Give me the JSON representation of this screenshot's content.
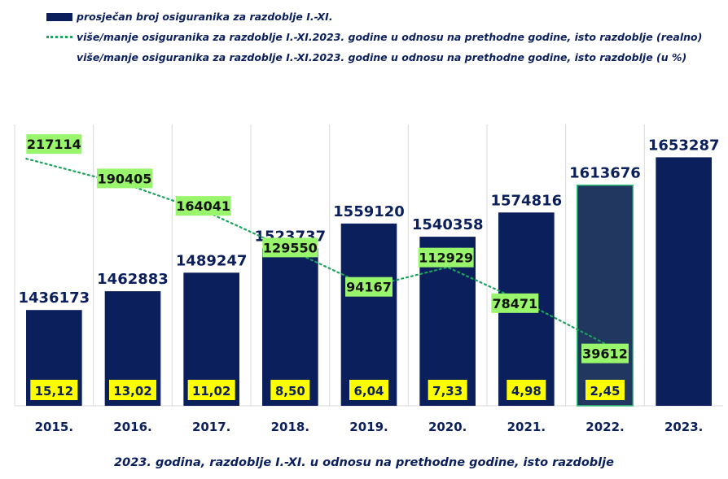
{
  "legend": [
    {
      "marker": "bar",
      "label": "prosječan broj osiguranika za razdoblje I.-XI."
    },
    {
      "marker": "dotted-line",
      "label": "više/manje osiguranika za razdoblje I.-XI.2023. godine u odnosu na prethodne godine, isto razdoblje (realno)"
    },
    {
      "marker": "none",
      "label": "više/manje osiguranika za razdoblje I.-XI.2023. godine u odnosu na prethodne godine, isto razdoblje (u %)"
    }
  ],
  "caption": "2023. godina, razdoblje I.-XI. u odnosu na prethodne godine, isto razdoblje",
  "colors": {
    "bar": "#0b1f5c",
    "bar_selected": "#22375f",
    "selected_outline": "#35c47a",
    "line": "#1aa35a",
    "line_label_bg": "#99f56c",
    "pct_label_bg": "#ffff00",
    "text": "#0b1f5c",
    "grid": "#d9d9d9"
  },
  "chart_data": {
    "type": "bar",
    "title": "",
    "xlabel": "",
    "ylabel": "",
    "categories": [
      "2015.",
      "2016.",
      "2017.",
      "2018.",
      "2019.",
      "2020.",
      "2021.",
      "2022.",
      "2023."
    ],
    "ylim": [
      1300000,
      1700000
    ],
    "y2lim": [
      -20000,
      250000
    ],
    "grid": "vertical-category-separators",
    "legend_position": "top-left",
    "selected_category": "2022.",
    "series": [
      {
        "name": "prosječan broj osiguranika za razdoblje I.-XI.",
        "type": "bar",
        "values": [
          1436173,
          1462883,
          1489247,
          1523737,
          1559120,
          1540358,
          1574816,
          1613676,
          1653287
        ],
        "labels": [
          "1436173",
          "1462883",
          "1489247",
          "1523737",
          "1559120",
          "1540358",
          "1574816",
          "1613676",
          "1653287"
        ]
      },
      {
        "name": "više/manje osiguranika za razdoblje I.-XI.2023. godine u odnosu na prethodne godine, isto razdoblje (realno)",
        "type": "line",
        "axis": "secondary",
        "values": [
          217114,
          190405,
          164041,
          129550,
          94167,
          112929,
          78471,
          39612,
          null
        ],
        "labels": [
          "217114",
          "190405",
          "164041",
          "129550",
          "94167",
          "112929",
          "78471",
          "39612",
          ""
        ]
      },
      {
        "name": "više/manje osiguranika za razdoblje I.-XI.2023. godine u odnosu na prethodne godine, isto razdoblje (u %)",
        "type": "label-only",
        "values": [
          15.12,
          13.02,
          11.02,
          8.5,
          6.04,
          7.33,
          4.98,
          2.45,
          null
        ],
        "labels": [
          "15,12",
          "13,02",
          "11,02",
          "8,50",
          "6,04",
          "7,33",
          "4,98",
          "2,45",
          ""
        ]
      }
    ]
  }
}
